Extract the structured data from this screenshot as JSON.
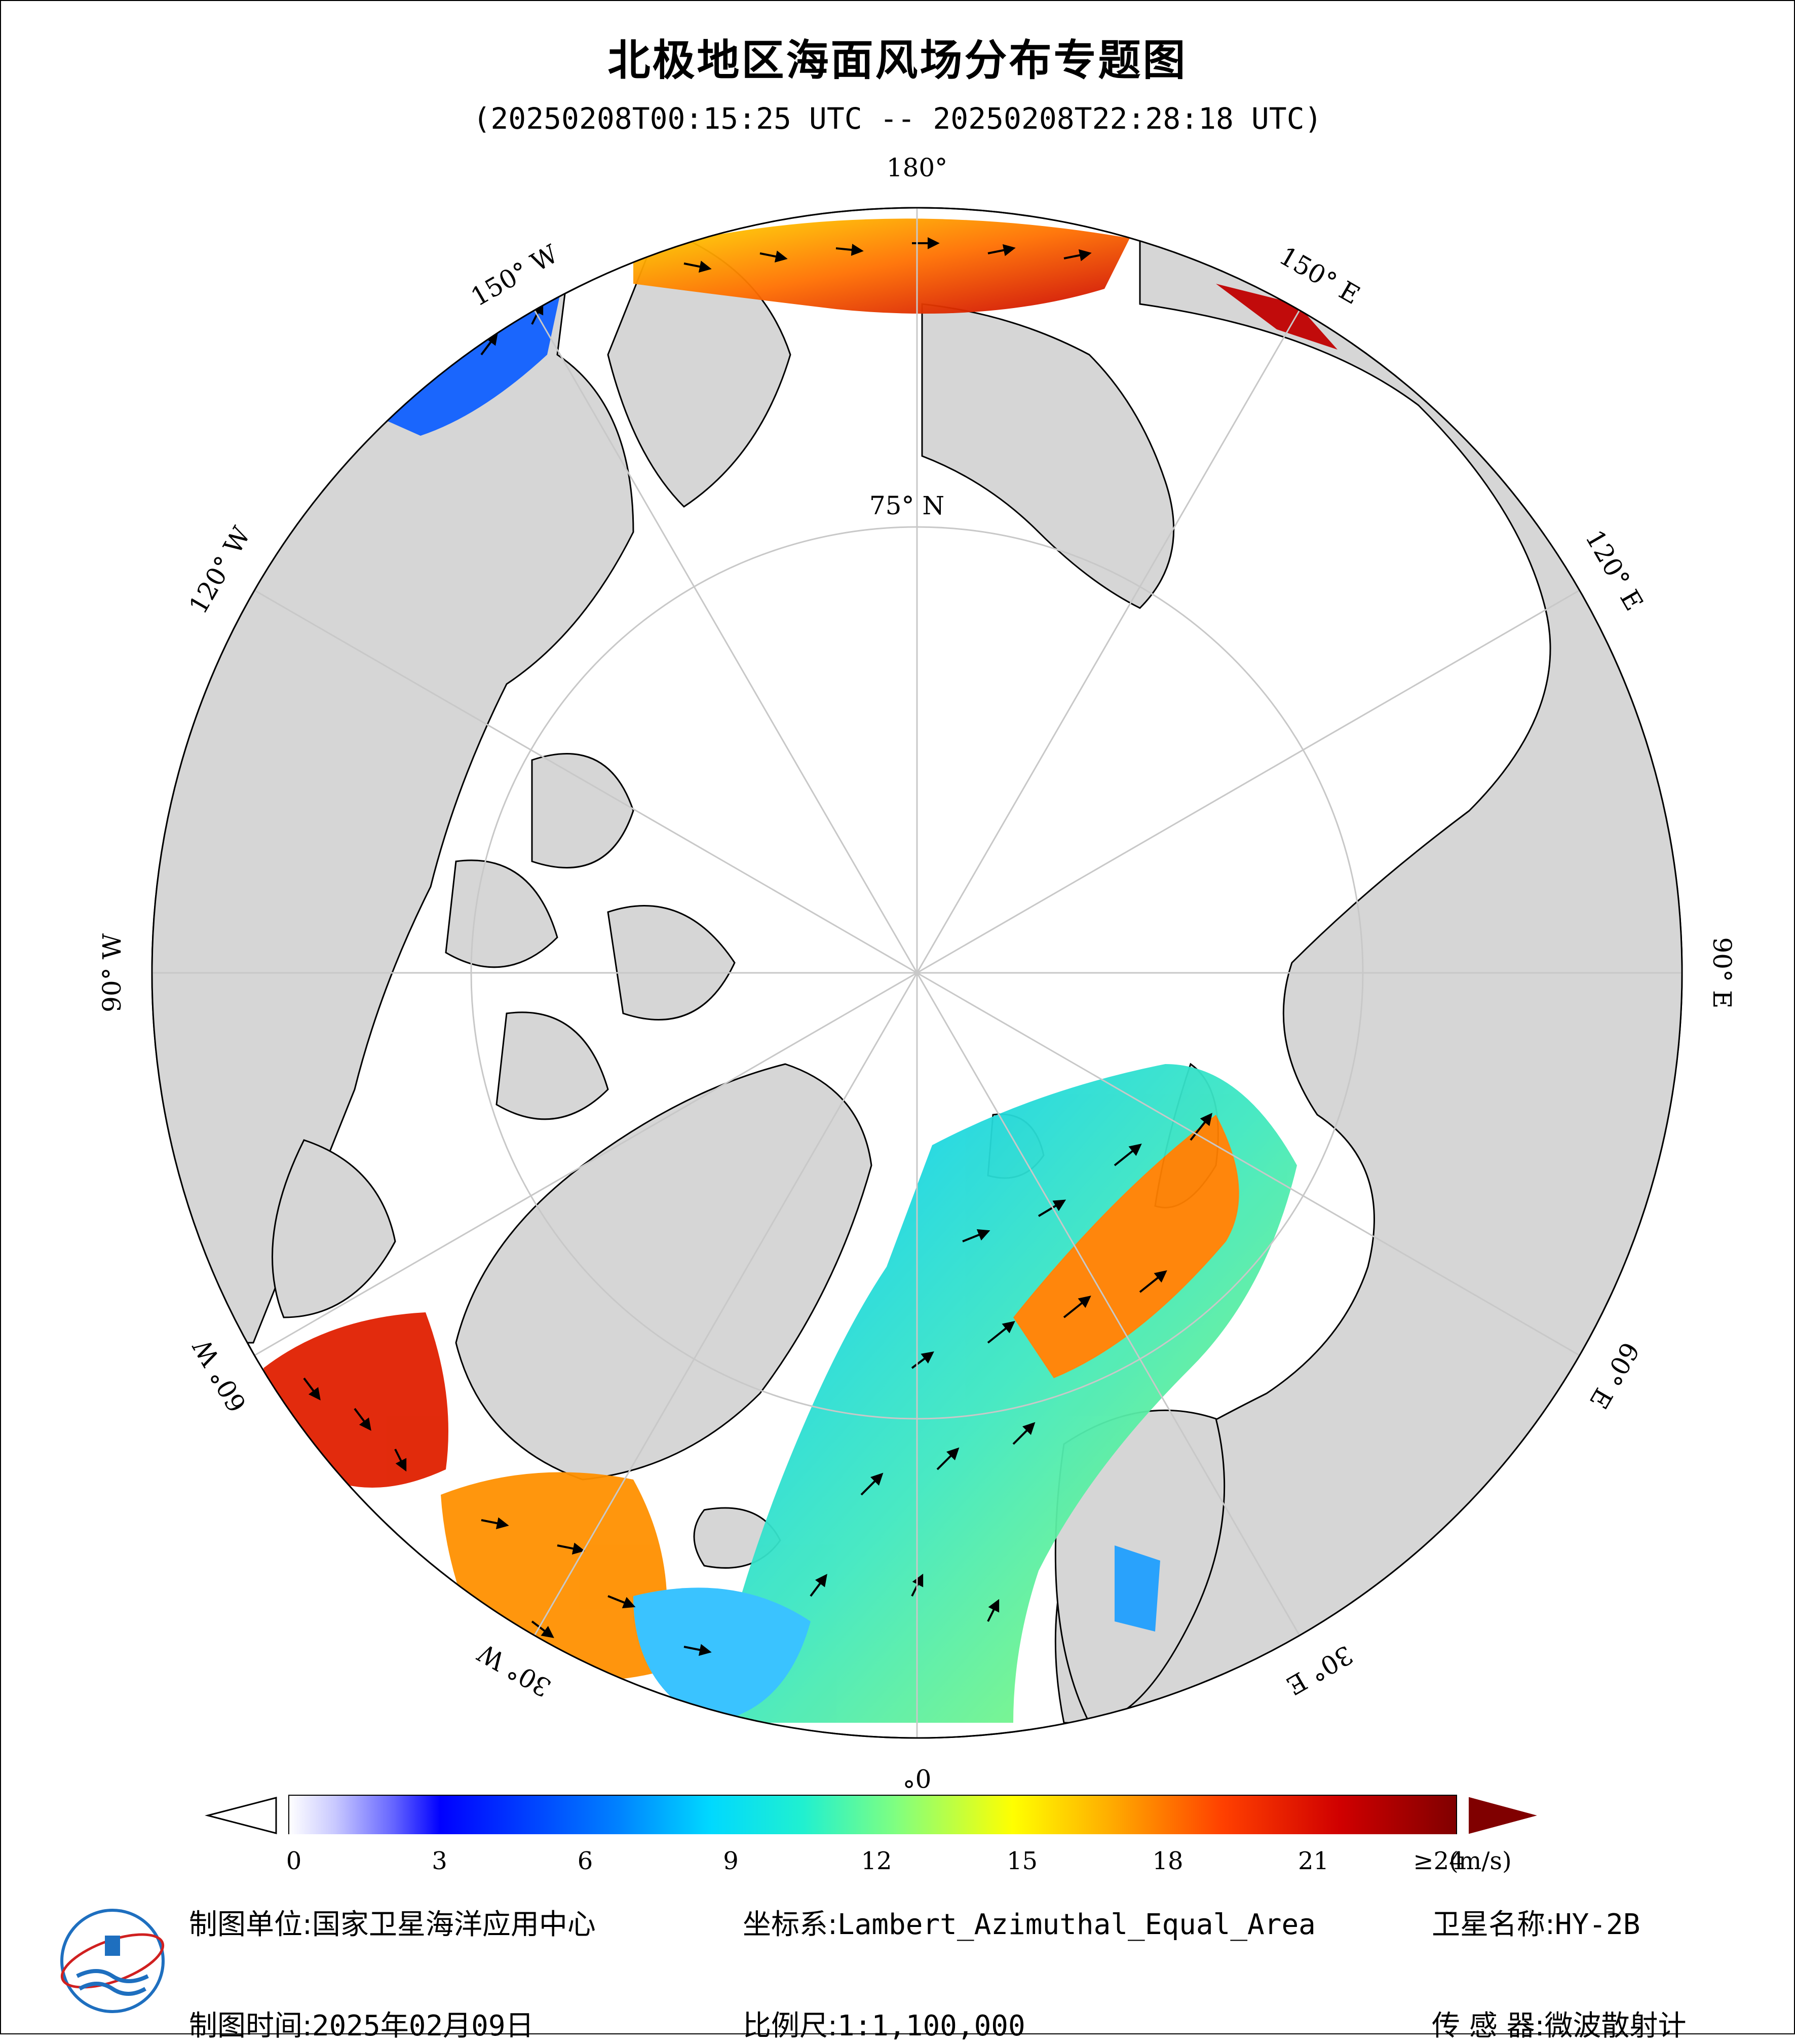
{
  "title": "北极地区海面风场分布专题图",
  "subtitle": "(20250208T00:15:25 UTC -- 20250208T22:28:18 UTC)",
  "map": {
    "longitude_labels": [
      {
        "text": "180°",
        "lon": 180
      },
      {
        "text": "150° E",
        "lon": 150
      },
      {
        "text": "120° E",
        "lon": 120
      },
      {
        "text": "90° E",
        "lon": 90
      },
      {
        "text": "60° E",
        "lon": 60
      },
      {
        "text": "30° E",
        "lon": 30
      },
      {
        "text": "0°",
        "lon": 0
      },
      {
        "text": "30° W",
        "lon": -30
      },
      {
        "text": "60° W",
        "lon": -60
      },
      {
        "text": "90° W",
        "lon": -90
      },
      {
        "text": "120° W",
        "lon": -120
      },
      {
        "text": "150° W",
        "lon": -150
      }
    ],
    "latitude_label": "75° N",
    "colors": {
      "ocean": "#ffffff",
      "land": "#d6d6d6",
      "coast": "#000000",
      "grid": "#c8c8c8"
    }
  },
  "colorbar": {
    "ticks": [
      "0",
      "3",
      "6",
      "9",
      "12",
      "15",
      "18",
      "21",
      "≥24"
    ],
    "unit": "(m/s)",
    "min": 0,
    "max": 24,
    "over_color": "#800000",
    "under_color": "#ffffff"
  },
  "footer": {
    "unit_label": "制图单位:",
    "unit_value": "国家卫星海洋应用中心",
    "crs_label": "坐标系:",
    "crs_value": "Lambert_Azimuthal_Equal_Area",
    "satellite_label": "卫星名称:",
    "satellite_value": "HY-2B",
    "date_label": "制图时间:",
    "date_value": "2025年02月09日",
    "scale_label": "比例尺:",
    "scale_value": "1:1,100,000",
    "sensor_label": "传 感 器:",
    "sensor_value": "微波散射计"
  }
}
